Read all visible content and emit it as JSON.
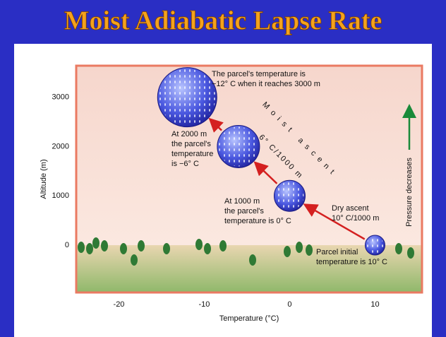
{
  "chart_data": {
    "type": "scatter",
    "title": "Moist Adiabatic Lapse Rate",
    "x_label": "Temperature (°C)",
    "y_label": "Altitude (m)",
    "x": [
      10,
      0,
      -6,
      -12
    ],
    "values": [
      0,
      1000,
      2000,
      3000
    ],
    "color": "#3a46d8",
    "xlim": [
      -25,
      15.5
    ],
    "ylim": [
      -960,
      3640
    ],
    "xticks": [
      -20,
      -10,
      0,
      10
    ],
    "yticks": [
      0,
      1000,
      2000,
      3000
    ],
    "grid": false,
    "annotations": [
      [
        "The parcel's temperature is",
        "−12° C when it reaches 3000 m"
      ],
      [
        "At 2000 m",
        "the parcel's",
        "temperature",
        "is −6° C"
      ],
      [
        "At 1000 m",
        "the parcel's",
        "temperature is 0° C"
      ],
      [
        "Dry ascent",
        "10° C/1000 m"
      ],
      [
        "Parcel initial",
        "temperature is 10° C"
      ]
    ],
    "moist_label": "Moist ascent",
    "moist_rate": "6° C/1000 m",
    "pressure_label": "Pressure decreases"
  }
}
